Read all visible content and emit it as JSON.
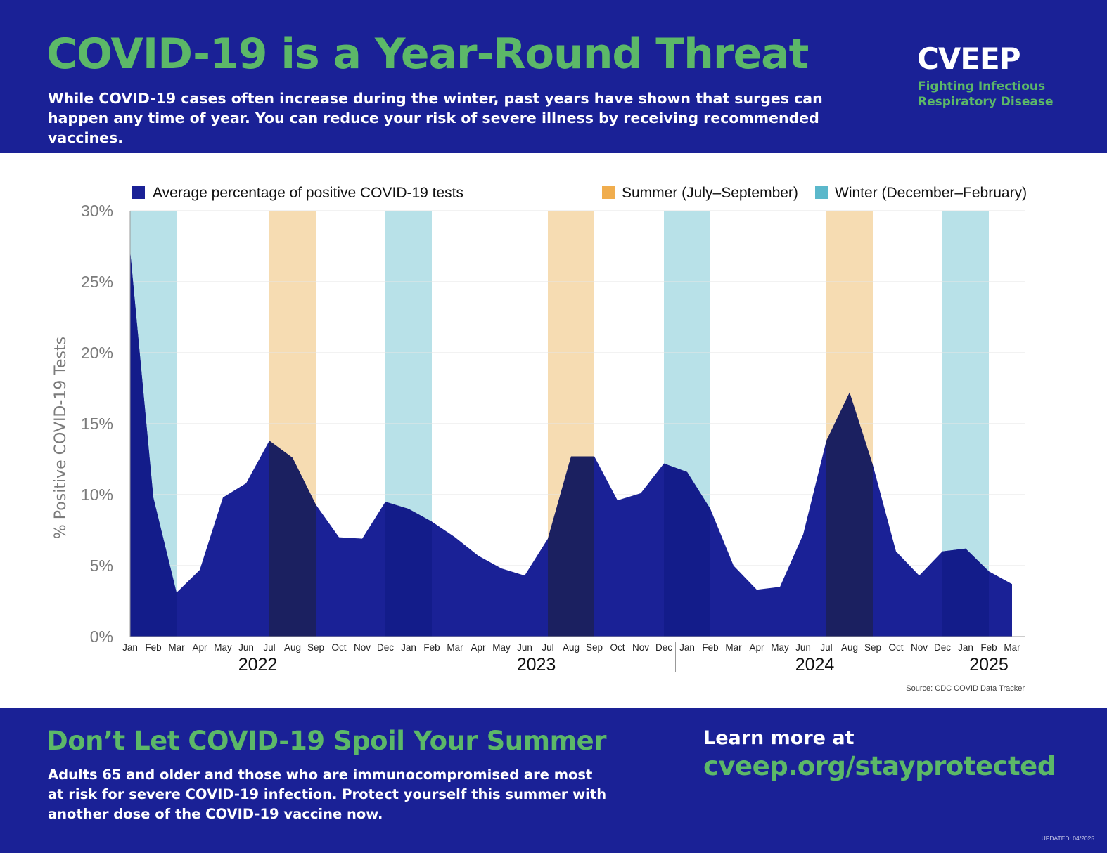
{
  "header": {
    "title": "COVID-19 is a Year-Round Threat",
    "subtitle": "While COVID-19 cases often increase during the winter, past years have shown that surges can happen any time of year. You can reduce your risk of severe illness by receiving recommended vaccines.",
    "brand": "CVEEP",
    "tagline_line1": "Fighting Infectious",
    "tagline_line2": "Respiratory Disease"
  },
  "chart_data": {
    "type": "area",
    "ylabel": "% Positive COVID-19 Tests",
    "ylim": [
      0,
      30
    ],
    "yticks": [
      0,
      5,
      10,
      15,
      20,
      25,
      30
    ],
    "ytick_labels": [
      "0%",
      "5%",
      "10%",
      "15%",
      "20%",
      "25%",
      "30%"
    ],
    "grid": true,
    "legend": {
      "series_label": "Average percentage of positive COVID-19 tests",
      "summer_label": "Summer (July–September)",
      "winter_label": "Winter (December–February)"
    },
    "years": [
      "2022",
      "2023",
      "2024",
      "2025"
    ],
    "categories": [
      "Jan",
      "Feb",
      "Mar",
      "Apr",
      "May",
      "Jun",
      "Jul",
      "Aug",
      "Sep",
      "Oct",
      "Nov",
      "Dec",
      "Jan",
      "Feb",
      "Mar",
      "Apr",
      "May",
      "Jun",
      "Jul",
      "Aug",
      "Sep",
      "Oct",
      "Nov",
      "Dec",
      "Jan",
      "Feb",
      "Mar",
      "Apr",
      "May",
      "Jun",
      "Jul",
      "Aug",
      "Sep",
      "Oct",
      "Nov",
      "Dec",
      "Jan",
      "Feb",
      "Mar"
    ],
    "values": [
      27.2,
      9.8,
      3.1,
      4.7,
      9.8,
      10.8,
      13.8,
      12.6,
      9.3,
      7.0,
      6.9,
      9.5,
      9.0,
      8.1,
      7.0,
      5.7,
      4.8,
      4.3,
      6.9,
      12.7,
      12.7,
      9.6,
      10.1,
      12.2,
      11.6,
      9.0,
      5.0,
      3.3,
      3.5,
      7.2,
      13.8,
      17.2,
      12.1,
      6.0,
      4.3,
      6.0,
      6.2,
      4.6,
      3.7
    ],
    "source": "Source: CDC COVID Data Tracker",
    "colors": {
      "area": "#1a2196",
      "area_summer": "#1b2060",
      "area_winter": "#131c8a",
      "summer_band": "#f6dcb2",
      "summer_swatch": "#f0ad4e",
      "winter_band": "#b8e1e8",
      "winter_swatch": "#5bb8cb",
      "grid": "#e6e6e6",
      "axis_text": "#7b7b7b"
    }
  },
  "footer": {
    "heading": "Don’t Let COVID-19 Spoil Your Summer",
    "body": "Adults 65 and older and those who are immunocompromised are most at risk for severe COVID-19 infection. Protect yourself this summer with another dose of the COVID-19 vaccine now.",
    "learn_more": "Learn more at",
    "url": "cveep.org/stayprotected",
    "updated": "UPDATED: 04/2025"
  }
}
